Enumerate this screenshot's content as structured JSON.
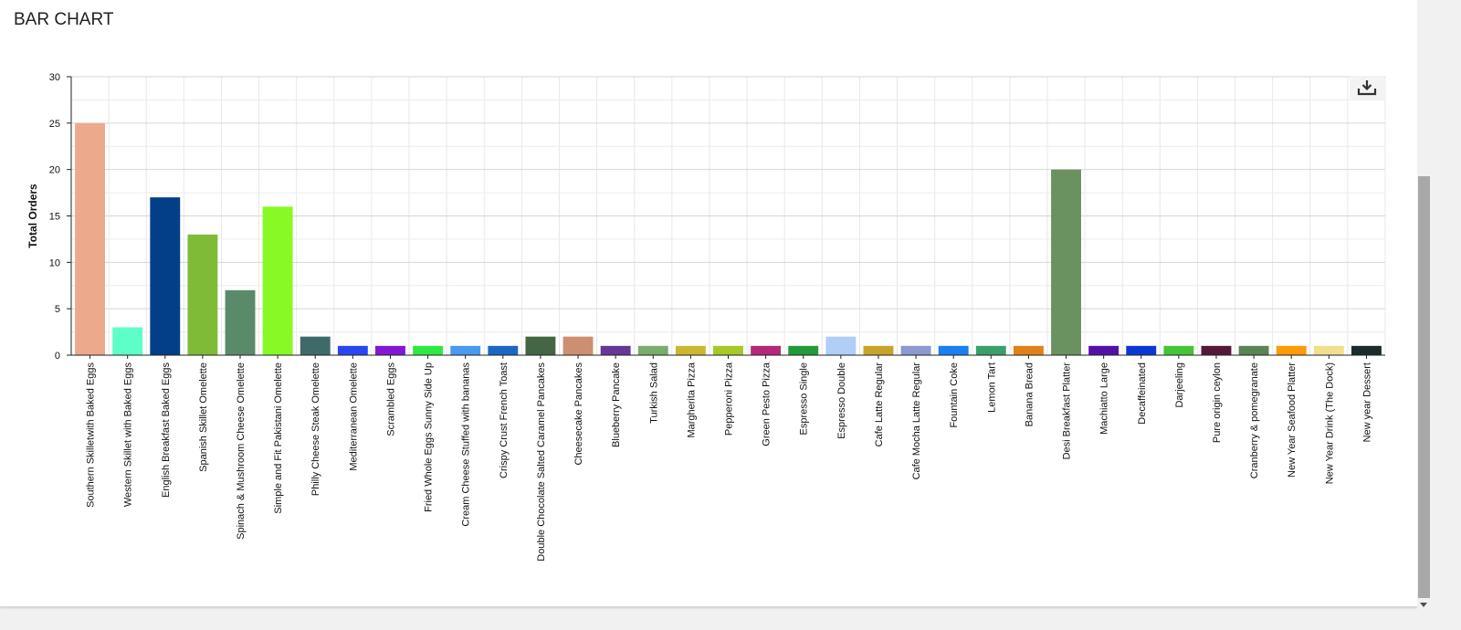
{
  "card": {
    "title": "BAR CHART"
  },
  "chart_data": {
    "type": "bar",
    "title": "",
    "xlabel": "",
    "ylabel": "Total Orders",
    "ylim": [
      0,
      30
    ],
    "yticks": [
      0,
      5,
      10,
      15,
      20,
      25,
      30
    ],
    "grid": true,
    "categories": [
      "Southern Skilletwith Baked Eggs",
      "Western Skillet with Baked Eggs",
      "English Breakfast Baked Eggs",
      "Spanish Skillet Omelette",
      "Spinach & Mushroom Cheese Omelette",
      "Simple and Fit Pakistani Omelette",
      "Philly Cheese Steak Omelette",
      "Mediterranean Omelette",
      "Scrambled Eggs",
      "Fried Whole Eggs Sunny Side Up",
      "Cream Cheese Stuffed with bananas",
      "Crispy Crust French Toast",
      "Double Chocolate Salted Caramel Pancakes",
      "Cheesecake Pancakes",
      "Blueberry Pancake",
      "Turkish Salad",
      "Margherita Pizza",
      "Pepperoni Pizza",
      "Green Pesto Pizza",
      "Espresso Single",
      "Espresso Double",
      "Cafe Latte Regular",
      "Cafe Mocha Latte Regular",
      "Fountain Coke",
      "Lemon Tart",
      "Banana Bread",
      "Desi Breakfast Platter",
      "Machiatto Large",
      "Decaffeinated",
      "Darjeeling",
      "Pure origin ceylon",
      "Cranberry & pomegranate",
      "New Year Seafood Platter",
      "New Year Drink (The Dock)",
      "New year Dessert"
    ],
    "values": [
      25,
      3,
      17,
      13,
      7,
      16,
      2,
      1,
      1,
      1,
      1,
      1,
      2,
      2,
      1,
      1,
      1,
      1,
      1,
      1,
      2,
      1,
      1,
      1,
      1,
      1,
      20,
      1,
      1,
      1,
      1,
      1,
      1,
      1,
      1
    ],
    "colors": [
      "#eda98c",
      "#5dfec8",
      "#023f88",
      "#80bb38",
      "#5a8a6a",
      "#88f924",
      "#3e6a6a",
      "#2846f4",
      "#8118d6",
      "#2cea42",
      "#4a9aee",
      "#1c66c6",
      "#446644",
      "#cc9070",
      "#653796",
      "#7aac6c",
      "#ccb830",
      "#a8c828",
      "#b7287a",
      "#229a3a",
      "#b0cef6",
      "#c8a42a",
      "#8c98d0",
      "#1880f0",
      "#3aa06a",
      "#e0821a",
      "#6a9160",
      "#5310a8",
      "#0a38d4",
      "#44c43a",
      "#541838",
      "#5a8454",
      "#fc9a08",
      "#f0e08e",
      "#1a2c2c"
    ]
  },
  "toolbar": {
    "download_icon": "download-icon"
  }
}
